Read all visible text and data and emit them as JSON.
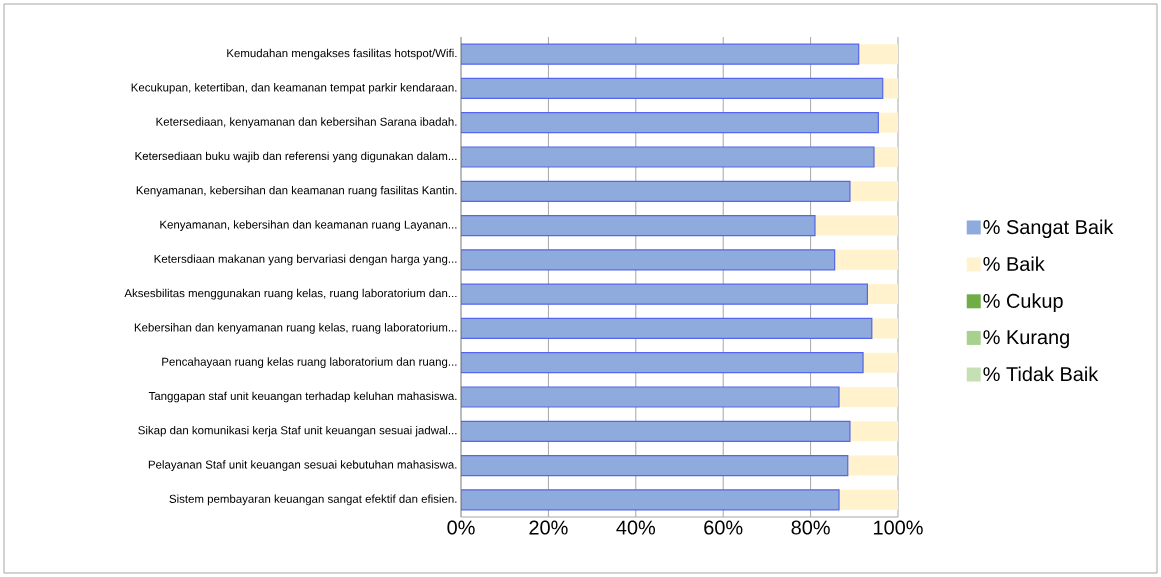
{
  "chart_data": {
    "type": "bar",
    "orientation": "horizontal",
    "stacked": true,
    "categories": [
      "Kemudahan mengakses fasilitas hotspot/Wifi.",
      "Kecukupan, ketertiban, dan keamanan tempat parkir kendaraan.",
      "Ketersediaan, kenyamanan dan kebersihan Sarana ibadah.",
      "Ketersediaan buku wajib dan referensi yang digunakan dalam...",
      "Kenyamanan, kebersihan dan keamanan ruang fasilitas Kantin.",
      "Kenyamanan, kebersihan dan keamanan ruang Layanan...",
      "Ketersdiaan makanan yang bervariasi dengan harga yang...",
      "Aksesbilitas menggunakan ruang kelas, ruang laboratorium dan...",
      "Kebersihan dan kenyamanan ruang kelas, ruang laboratorium...",
      "Pencahayaan ruang kelas ruang laboratorium dan ruang...",
      "Tanggapan staf unit keuangan terhadap keluhan mahasiswa.",
      "Sikap dan komunikasi kerja Staf unit keuangan sesuai jadwal...",
      "Pelayanan Staf unit keuangan sesuai kebutuhan mahasiswa.",
      "Sistem pembayaran keuangan sangat efektif dan efisien."
    ],
    "series": [
      {
        "name": "% Sangat Baik",
        "color": "#8faadc",
        "values": [
          91,
          96.5,
          95.5,
          94.5,
          89,
          81,
          85.5,
          93,
          94,
          92,
          86.5,
          89,
          88.5,
          86.5
        ]
      },
      {
        "name": "% Baik",
        "color": "#fff2cc",
        "values": [
          9,
          3.5,
          4.5,
          5.5,
          11,
          19,
          14.5,
          7,
          6,
          8,
          13.5,
          11,
          11.5,
          13.5
        ]
      },
      {
        "name": "% Cukup",
        "color": "#70ad47",
        "values": [
          0,
          0,
          0,
          0,
          0,
          0,
          0,
          0,
          0,
          0,
          0,
          0,
          0,
          0
        ]
      },
      {
        "name": "% Kurang",
        "color": "#a9d18e",
        "values": [
          0,
          0,
          0,
          0,
          0,
          0,
          0,
          0,
          0,
          0,
          0,
          0,
          0,
          0
        ]
      },
      {
        "name": "% Tidak Baik",
        "color": "#c5e0b4",
        "values": [
          0,
          0,
          0,
          0,
          0,
          0,
          0,
          0,
          0,
          0,
          0,
          0,
          0,
          0
        ]
      }
    ],
    "xlim": [
      0,
      100
    ],
    "xticks": [
      {
        "value": 0,
        "label": "0%"
      },
      {
        "value": 20,
        "label": "20%"
      },
      {
        "value": 40,
        "label": "40%"
      },
      {
        "value": 60,
        "label": "60%"
      },
      {
        "value": 80,
        "label": "80%"
      },
      {
        "value": 100,
        "label": "100%"
      }
    ],
    "grid": "x",
    "legend": "right"
  }
}
